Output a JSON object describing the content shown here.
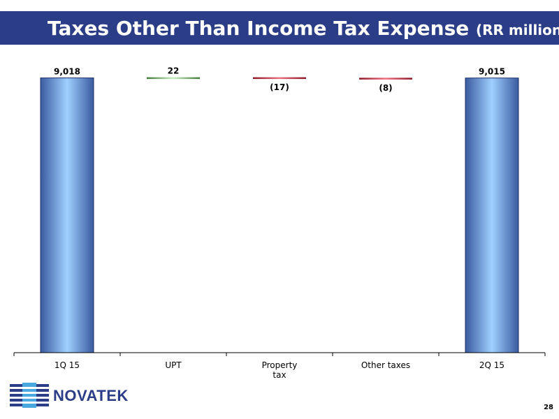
{
  "header": {
    "title": "Taxes Other Than Income Tax Expense",
    "unit": "(RR million)"
  },
  "colors": {
    "header_bg": "#2b3d86",
    "bar_gradient": [
      "#3b5aa0",
      "#9fd0ff",
      "#3b5aa0"
    ],
    "increase": "#5a9a4a",
    "decrease": "#b02a3a"
  },
  "chart_data": {
    "type": "bar",
    "subtype": "waterfall",
    "categories": [
      "1Q 15",
      "UPT",
      "Property\ntax",
      "Other taxes",
      "2Q 15"
    ],
    "values": [
      9018,
      22,
      -17,
      -8,
      9015
    ],
    "value_labels": [
      "9,018",
      "22",
      "(17)",
      "(8)",
      "9,015"
    ],
    "kinds": [
      "total",
      "delta",
      "delta",
      "delta",
      "total"
    ],
    "ylim": [
      0,
      9100
    ],
    "grid": false,
    "legend": "none"
  },
  "footer": {
    "company": "NOVATEK",
    "page": "28"
  }
}
